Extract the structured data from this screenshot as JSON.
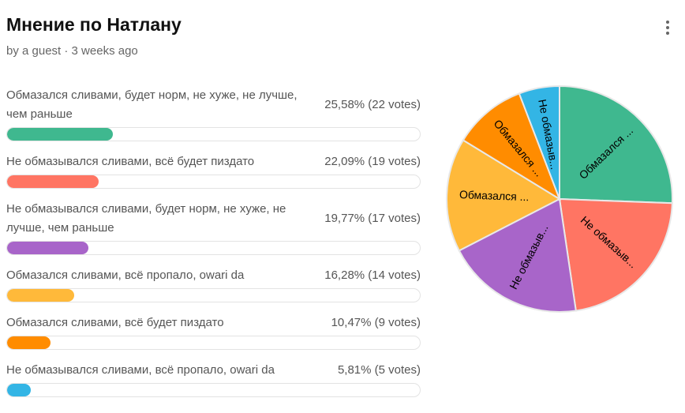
{
  "header": {
    "title": "Мнение по Натлану",
    "subtitle": "by a guest · 3 weeks ago",
    "menu_icon": "kebab-menu-icon"
  },
  "options": [
    {
      "label": "Обмазался сливами, будет норм, не хуже, не лучше, чем раньше",
      "percent_text": "25,58% (22 votes)",
      "percent": 25.58,
      "votes": 22,
      "color": "#3fb88f",
      "pie_label": "Обмазался ..."
    },
    {
      "label": "Не обмазывался сливами, всё будет пиздато",
      "percent_text": "22,09% (19 votes)",
      "percent": 22.09,
      "votes": 19,
      "color": "#ff7563",
      "pie_label": "Не обмазыв..."
    },
    {
      "label": "Не обмазывался сливами, будет норм, не хуже, не лучше, чем раньше",
      "percent_text": "19,77% (17 votes)",
      "percent": 19.77,
      "votes": 17,
      "color": "#a865c9",
      "pie_label": "Не обмазыв..."
    },
    {
      "label": "Обмазался сливами, всё пропало, owari da",
      "percent_text": "16,28% (14 votes)",
      "percent": 16.28,
      "votes": 14,
      "color": "#ffb93a",
      "pie_label": "Обмазался ..."
    },
    {
      "label": "Обмазался сливами, всё будет пиздато",
      "percent_text": "10,47% (9 votes)",
      "percent": 10.47,
      "votes": 9,
      "color": "#ff8c00",
      "pie_label": "Обмазался ..."
    },
    {
      "label": "Не обмазывался сливами, всё пропало, owari da",
      "percent_text": "5,81% (5 votes)",
      "percent": 5.81,
      "votes": 5,
      "color": "#33b5e5",
      "pie_label": "Не обмазыв..."
    }
  ],
  "chart_data": {
    "type": "pie",
    "categories": [
      "Обмазался сливами, будет норм, не хуже, не лучше, чем раньше",
      "Не обмазывался сливами, всё будет пиздато",
      "Не обмазывался сливами, будет норм, не хуже, не лучше, чем раньше",
      "Обмазался сливами, всё пропало, owari da",
      "Обмазался сливами, всё будет пиздато",
      "Не обмазывался сливами, всё пропало, owari da"
    ],
    "values": [
      22,
      19,
      17,
      14,
      9,
      5
    ],
    "start": "top",
    "direction": "clockwise"
  }
}
